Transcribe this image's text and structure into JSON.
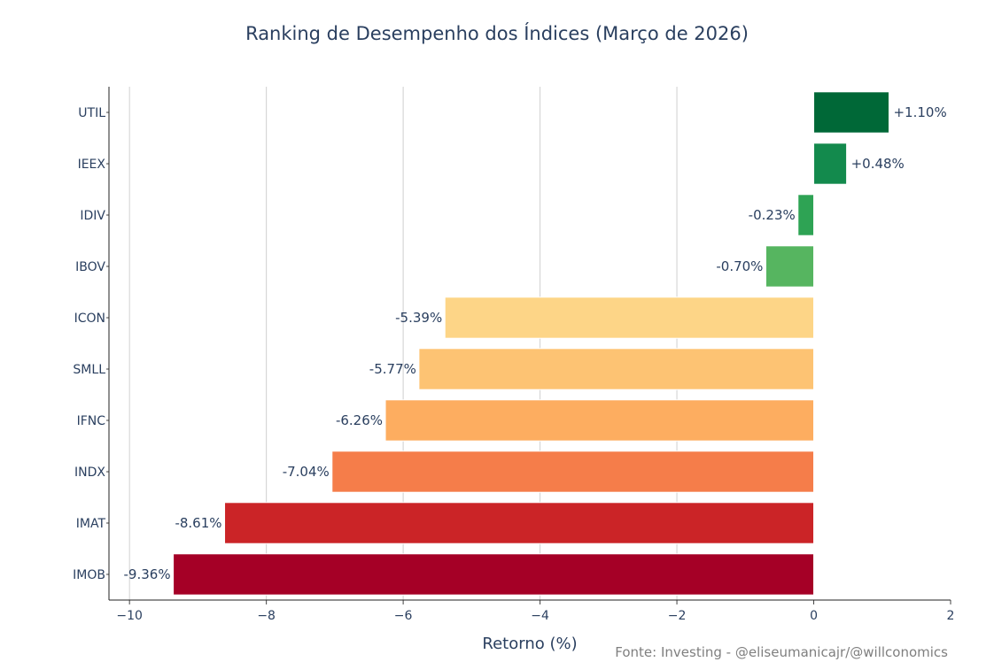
{
  "chart_data": {
    "type": "bar",
    "orientation": "horizontal",
    "title": "Ranking de Desempenho dos Índices (Março de 2026)",
    "xlabel": "Retorno (%)",
    "ylabel": "",
    "xlim": [
      -10.3,
      2
    ],
    "xticks": [
      -10,
      -8,
      -6,
      -4,
      -2,
      0,
      2
    ],
    "xtick_labels": [
      "−10",
      "−8",
      "−6",
      "−4",
      "−2",
      "0",
      "2"
    ],
    "grid": true,
    "categories": [
      "UTIL",
      "IEEX",
      "IDIV",
      "IBOV",
      "ICON",
      "SMLL",
      "IFNC",
      "INDX",
      "IMAT",
      "IMOB"
    ],
    "values": [
      1.1,
      0.48,
      -0.23,
      -0.7,
      -5.39,
      -5.77,
      -6.26,
      -7.04,
      -8.61,
      -9.36
    ],
    "value_labels": [
      "+1.10%",
      "+0.48%",
      "-0.23%",
      "-0.70%",
      "-5.39%",
      "-5.77%",
      "-6.26%",
      "-7.04%",
      "-8.61%",
      "-9.36%"
    ],
    "colors": [
      "#006837",
      "#138a4d",
      "#2ea354",
      "#56b560",
      "#fdd587",
      "#fdc373",
      "#fdad60",
      "#f57d4a",
      "#cb2427",
      "#a50026"
    ]
  },
  "source_note": "Fonte: Investing - @eliseumanicajr/@willconomics"
}
